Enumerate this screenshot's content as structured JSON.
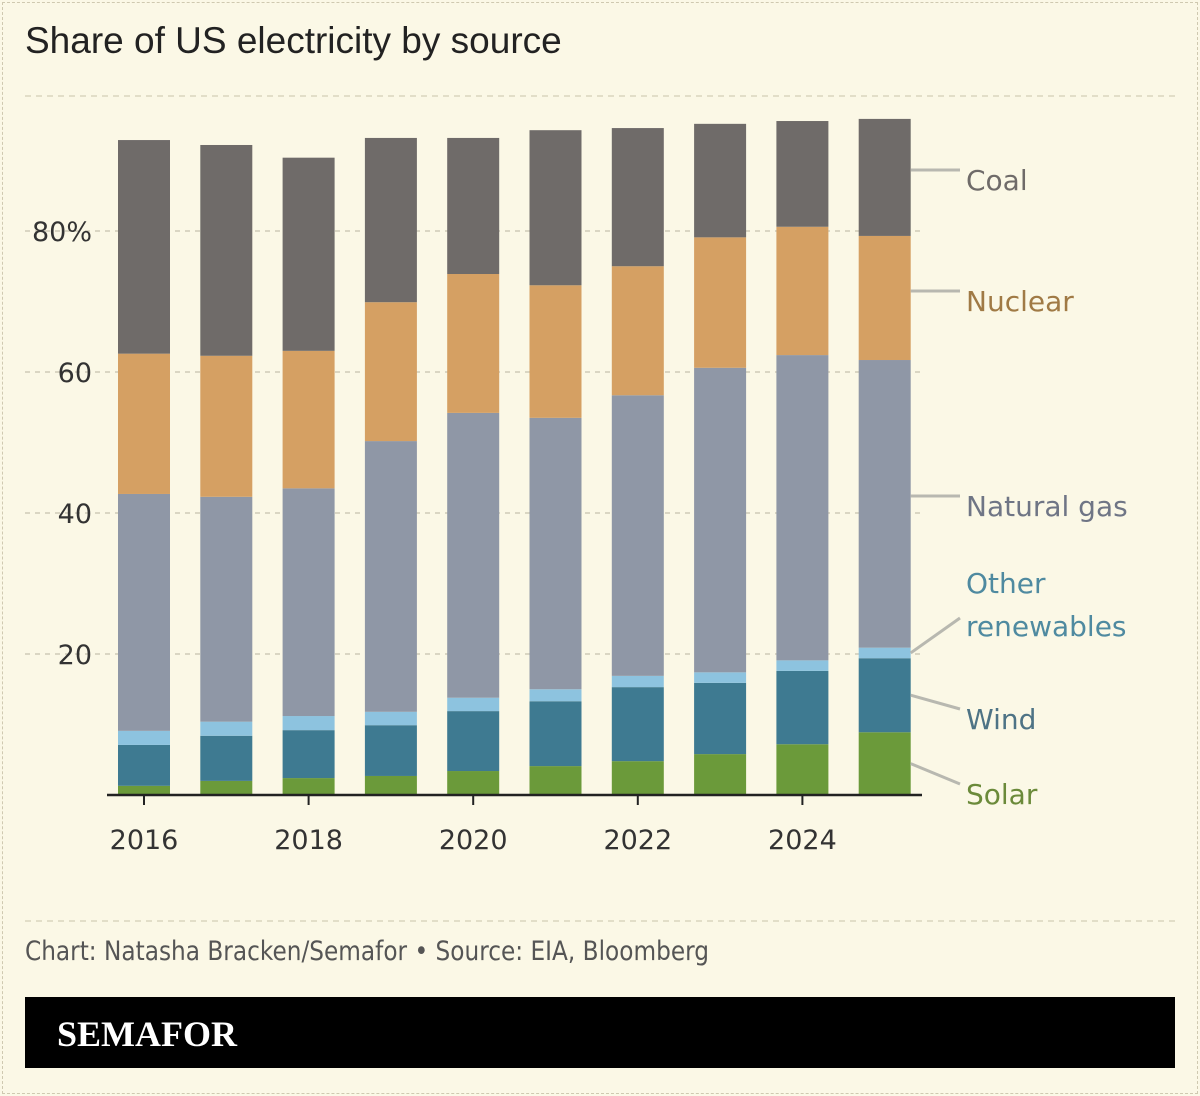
{
  "title": "Share of US electricity by source",
  "credit": "Chart: Natasha Bracken/Semafor • Source: EIA, Bloomberg",
  "brand": "SEMAFOR",
  "chart_data": {
    "type": "bar",
    "stacked": true,
    "title": "Share of US electricity by source",
    "categories": [
      "2016",
      "2017",
      "2018",
      "2019",
      "2020",
      "2021",
      "2022",
      "2023",
      "2024",
      "2025"
    ],
    "x_tick_labels": [
      "2016",
      "2018",
      "2020",
      "2022",
      "2024"
    ],
    "y_tick_labels": [
      "20",
      "40",
      "60",
      "80%"
    ],
    "y_ticks": [
      20,
      40,
      60,
      80
    ],
    "ylim": [
      0,
      100
    ],
    "grid": true,
    "legend": "right, direct labels",
    "series": [
      {
        "name": "Solar",
        "color": "#6b9a3a",
        "label_color": "#6b8a3a",
        "values": [
          1.3,
          2.0,
          2.4,
          2.7,
          3.4,
          4.1,
          4.8,
          5.8,
          7.2,
          8.9
        ]
      },
      {
        "name": "Wind",
        "color": "#3e7a91",
        "label_color": "#4e7385",
        "values": [
          5.8,
          6.4,
          6.8,
          7.2,
          8.5,
          9.2,
          10.5,
          10.1,
          10.4,
          10.5
        ]
      },
      {
        "name": "Other renewables",
        "color": "#8dc3df",
        "label_color": "#4f8aa0",
        "values": [
          2.0,
          2.0,
          2.0,
          1.9,
          1.9,
          1.7,
          1.6,
          1.5,
          1.5,
          1.5
        ]
      },
      {
        "name": "Natural gas",
        "color": "#8f97a6",
        "label_color": "#6f7585",
        "values": [
          33.6,
          31.9,
          32.3,
          38.4,
          40.4,
          38.5,
          39.8,
          43.2,
          43.3,
          40.8
        ]
      },
      {
        "name": "Nuclear",
        "color": "#d5a063",
        "label_color": "#a07a45",
        "values": [
          19.9,
          20.0,
          19.5,
          19.7,
          19.7,
          18.8,
          18.3,
          18.5,
          18.2,
          17.6
        ]
      },
      {
        "name": "Coal",
        "color": "#6f6b69",
        "label_color": "#6f6b69",
        "values": [
          30.3,
          29.9,
          27.4,
          23.3,
          19.3,
          22.0,
          19.6,
          16.1,
          15.0,
          16.6
        ]
      }
    ]
  }
}
